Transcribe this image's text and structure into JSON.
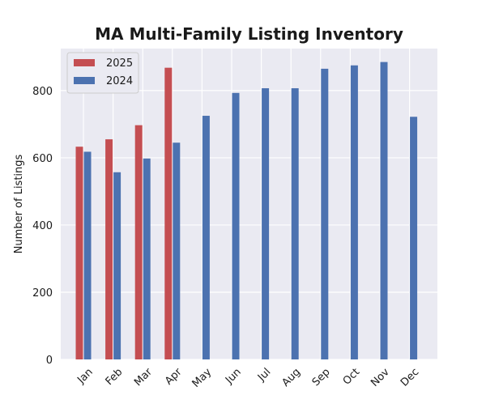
{
  "chart_data": {
    "type": "bar",
    "title": "MA Multi-Family Listing Inventory",
    "xlabel": "",
    "ylabel": "Number of Listings",
    "categories": [
      "Jan",
      "Feb",
      "Mar",
      "Apr",
      "May",
      "Jun",
      "Jul",
      "Aug",
      "Sep",
      "Oct",
      "Nov",
      "Dec"
    ],
    "ylim": [
      0,
      925
    ],
    "yticks": [
      0,
      200,
      400,
      600,
      800
    ],
    "grid": true,
    "legend_position": "top-left",
    "series": [
      {
        "name": "2025",
        "color": "#c44e52",
        "values": [
          633,
          655,
          697,
          868,
          null,
          null,
          null,
          null,
          null,
          null,
          null,
          null
        ]
      },
      {
        "name": "2024",
        "color": "#4c72b0",
        "values": [
          618,
          557,
          598,
          645,
          725,
          793,
          807,
          807,
          865,
          875,
          885,
          722
        ]
      }
    ]
  }
}
